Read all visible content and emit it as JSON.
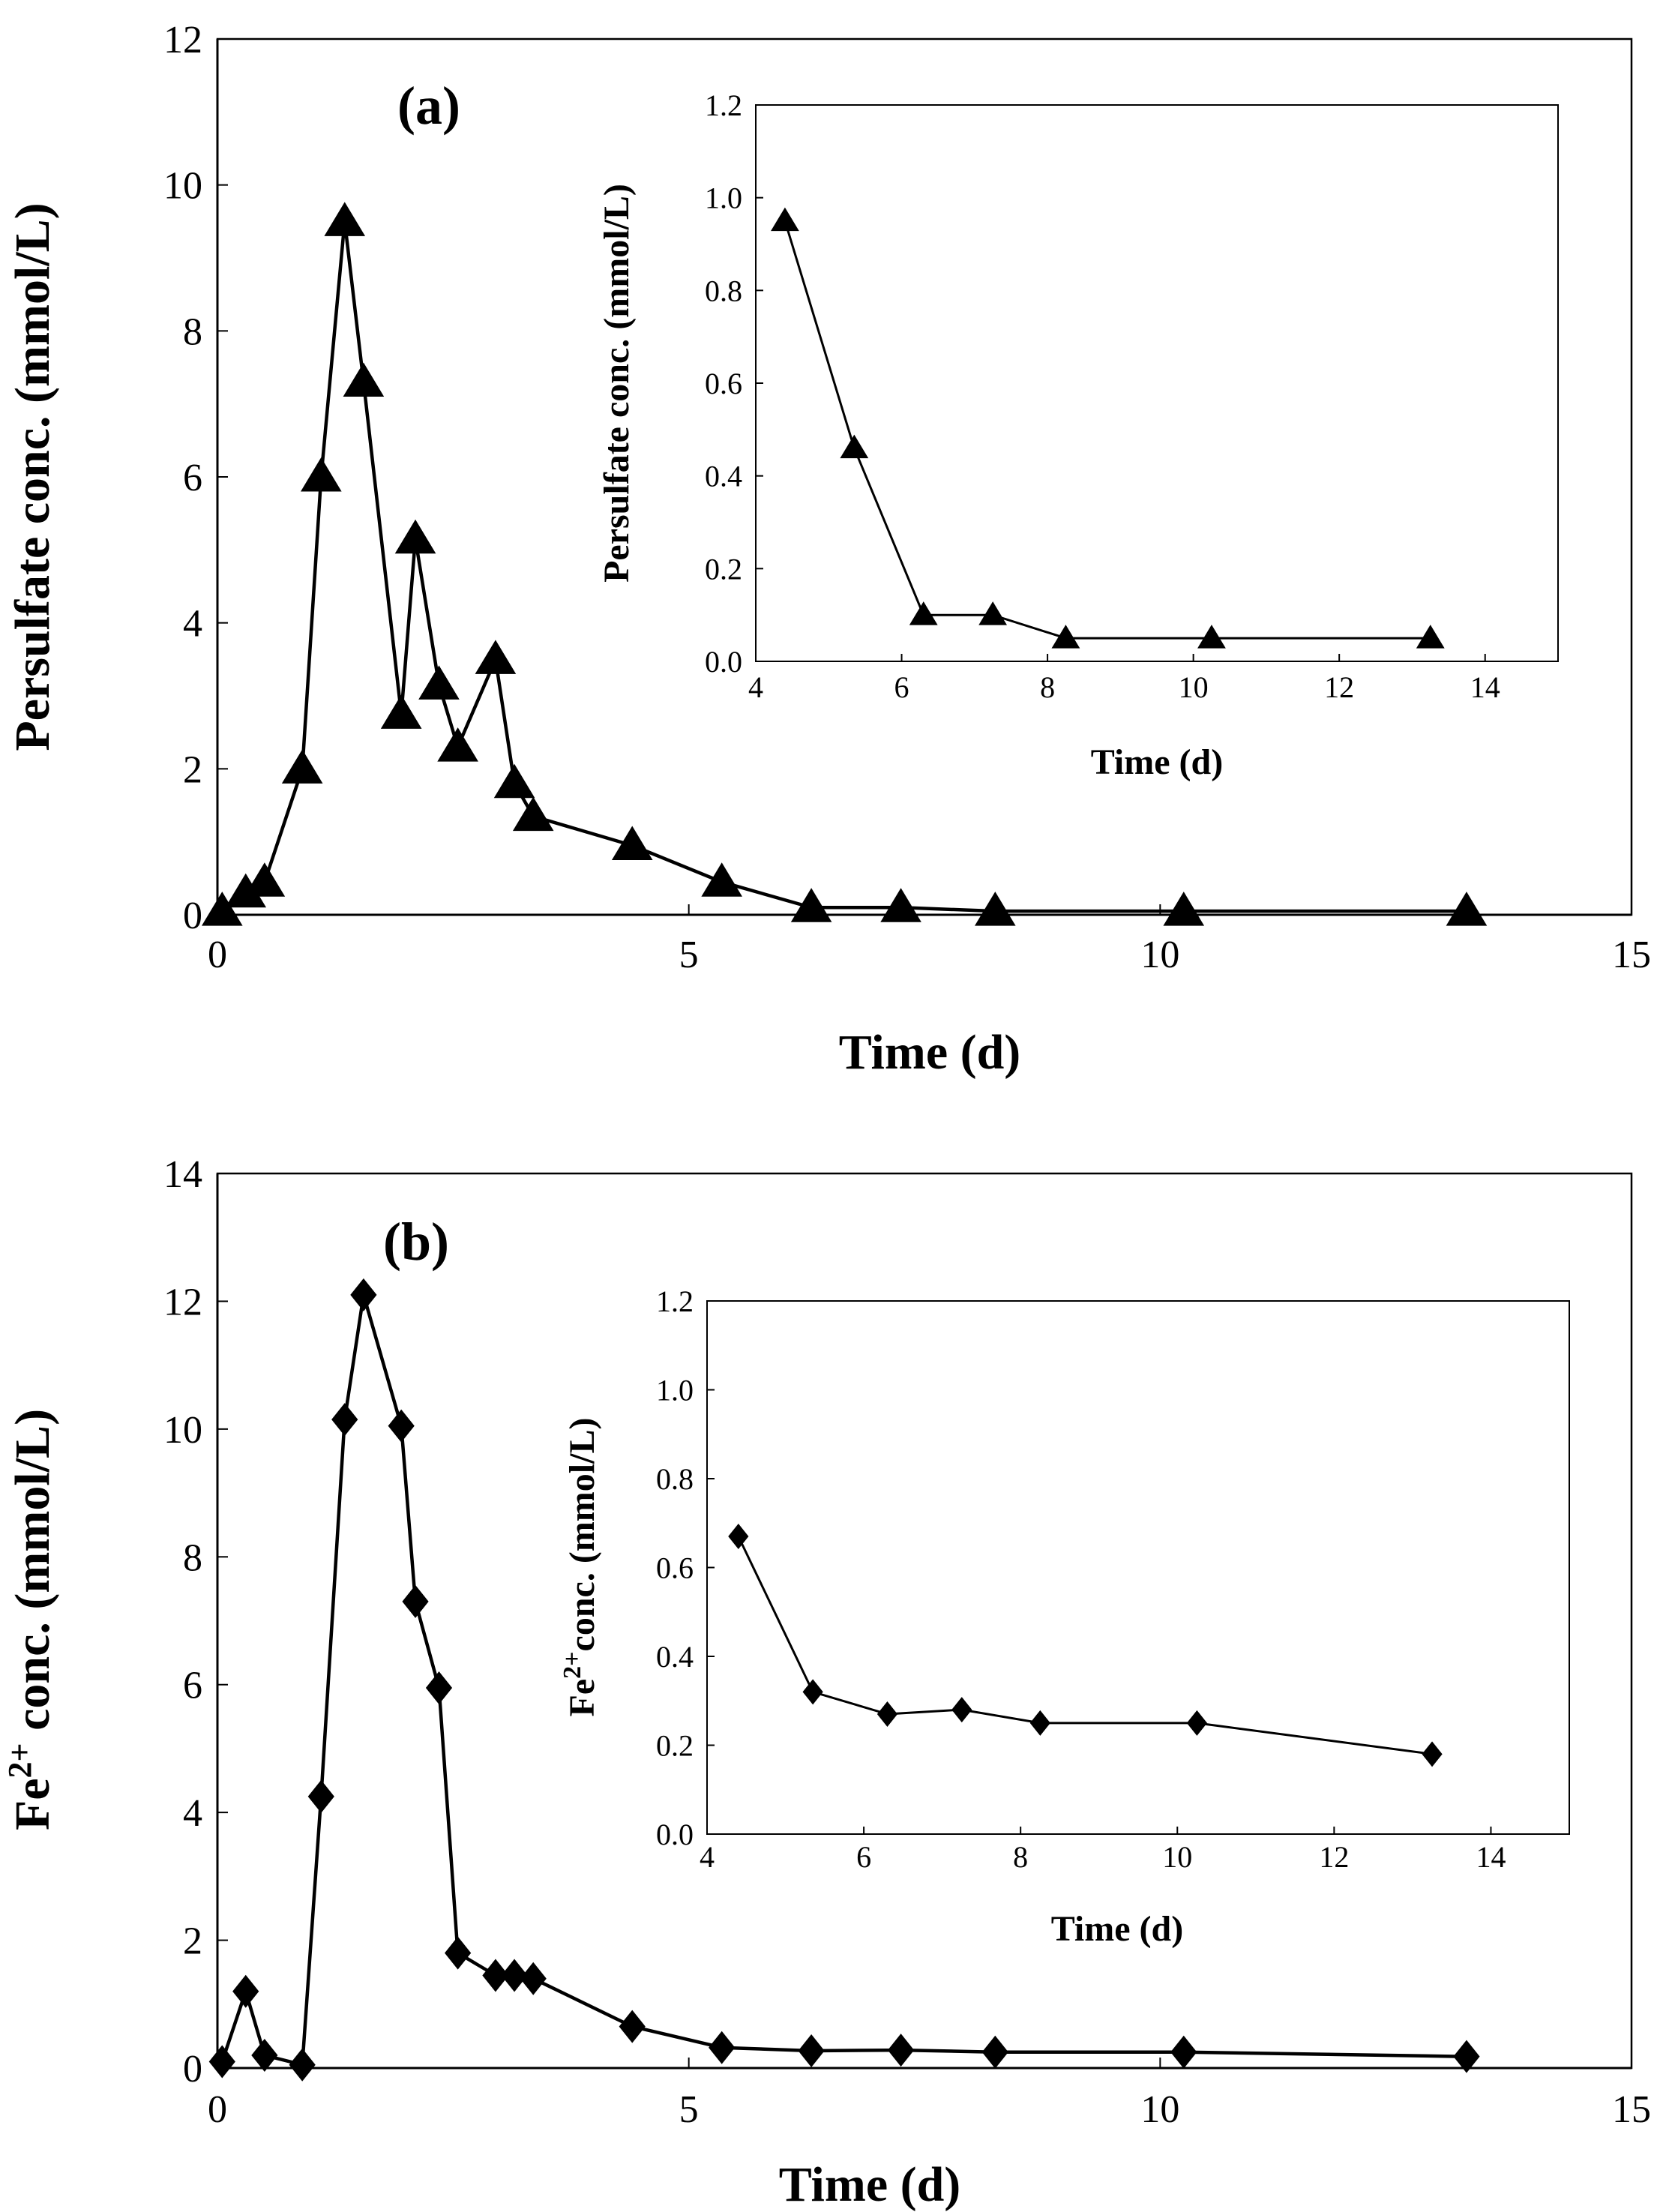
{
  "chart_data": [
    {
      "id": "a",
      "type": "line",
      "panel_label": "(a)",
      "xlabel": "Time (d)",
      "ylabel": "Persulfate conc. (mmol/L)",
      "xlim": [
        0,
        15
      ],
      "ylim": [
        0,
        12
      ],
      "xticks": [
        0,
        5,
        10,
        15
      ],
      "yticks": [
        0,
        2,
        4,
        6,
        8,
        10,
        12
      ],
      "marker": "triangle",
      "series": [
        {
          "name": "Persulfate",
          "x": [
            0.05,
            0.3,
            0.5,
            0.9,
            1.1,
            1.35,
            1.55,
            1.95,
            2.1,
            2.35,
            2.55,
            2.95,
            3.15,
            3.35,
            4.4,
            5.35,
            6.3,
            7.25,
            8.25,
            10.25,
            13.25
          ],
          "y": [
            0.05,
            0.3,
            0.45,
            2.0,
            6.0,
            9.5,
            7.3,
            2.75,
            5.15,
            3.15,
            2.3,
            3.5,
            1.8,
            1.35,
            0.95,
            0.45,
            0.1,
            0.1,
            0.05,
            0.05,
            0.05
          ]
        }
      ],
      "inset": {
        "xlabel": "Time (d)",
        "ylabel": "Persulfate conc. (mmol/L)",
        "xlim": [
          4,
          15
        ],
        "ylim": [
          0,
          1.2
        ],
        "xticks": [
          4,
          6,
          8,
          10,
          12,
          14
        ],
        "yticks": [
          "0.0",
          "0.2",
          "0.4",
          "0.6",
          "0.8",
          "1.0",
          "1.2"
        ],
        "series": [
          {
            "name": "Persulfate",
            "x": [
              4.4,
              5.35,
              6.3,
              7.25,
              8.25,
              10.25,
              13.25
            ],
            "y": [
              0.95,
              0.46,
              0.1,
              0.1,
              0.05,
              0.05,
              0.05
            ]
          }
        ]
      }
    },
    {
      "id": "b",
      "type": "line",
      "panel_label": "(b)",
      "xlabel": "Time (d)",
      "ylabel_main": "Fe",
      "ylabel_sup": "2+",
      "ylabel_rest": " conc. (mmol/L)",
      "xlim": [
        0,
        15
      ],
      "ylim": [
        0,
        14
      ],
      "xticks": [
        0,
        5,
        10,
        15
      ],
      "yticks": [
        0,
        2,
        4,
        6,
        8,
        10,
        12,
        14
      ],
      "marker": "diamond",
      "series": [
        {
          "name": "Fe2+",
          "x": [
            0.05,
            0.3,
            0.5,
            0.9,
            1.1,
            1.35,
            1.55,
            1.95,
            2.1,
            2.35,
            2.55,
            2.95,
            3.15,
            3.35,
            4.4,
            5.35,
            6.3,
            7.25,
            8.25,
            10.25,
            13.25
          ],
          "y": [
            0.1,
            1.2,
            0.2,
            0.05,
            4.25,
            10.15,
            12.1,
            10.05,
            7.3,
            5.95,
            1.8,
            1.45,
            1.45,
            1.4,
            0.65,
            0.32,
            0.27,
            0.28,
            0.25,
            0.25,
            0.18
          ]
        }
      ],
      "inset": {
        "xlabel": "Time (d)",
        "ylabel_main": "Fe",
        "ylabel_sup": "2+",
        "ylabel_rest": "conc. (mmol/L)",
        "xlim": [
          4,
          15
        ],
        "ylim": [
          0,
          1.2
        ],
        "xticks": [
          4,
          6,
          8,
          10,
          12,
          14
        ],
        "yticks": [
          "0.0",
          "0.2",
          "0.4",
          "0.6",
          "0.8",
          "1.0",
          "1.2"
        ],
        "series": [
          {
            "name": "Fe2+",
            "x": [
              4.4,
              5.35,
              6.3,
              7.25,
              8.25,
              10.25,
              13.25
            ],
            "y": [
              0.67,
              0.32,
              0.27,
              0.28,
              0.25,
              0.25,
              0.18
            ]
          }
        ]
      }
    }
  ]
}
